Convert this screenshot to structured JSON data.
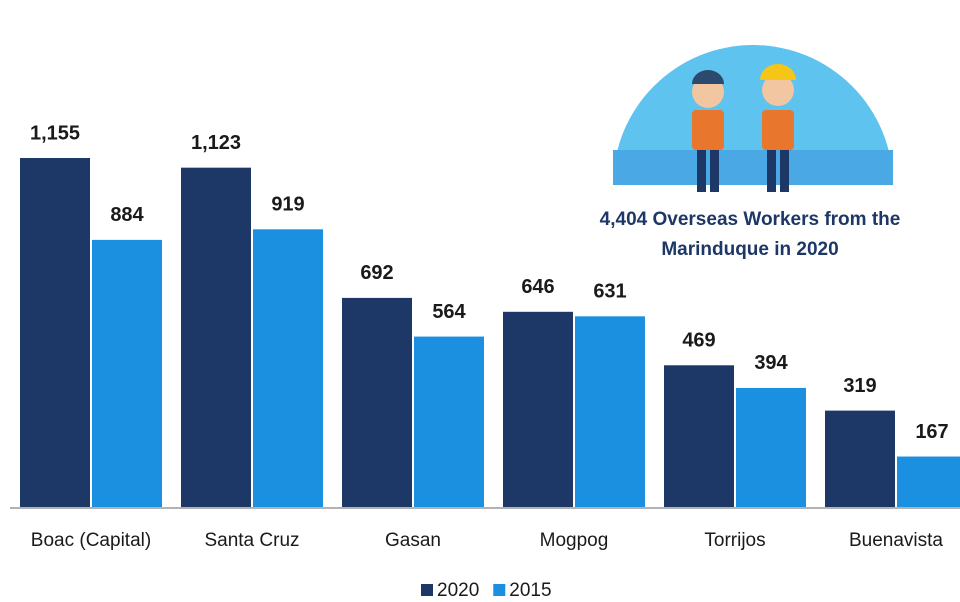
{
  "chart_data": {
    "type": "bar",
    "annotation": "4,404 Overseas Workers from the Marinduque in 2020",
    "categories": [
      "Boac (Capital)",
      "Santa Cruz",
      "Gasan",
      "Mogpog",
      "Torrijos",
      "Buenavista"
    ],
    "series": [
      {
        "name": "2020",
        "color": "#1d3766",
        "values": [
          1155,
          1123,
          692,
          646,
          469,
          319
        ],
        "value_labels": [
          "1,155",
          "1,123",
          "692",
          "646",
          "469",
          "319"
        ]
      },
      {
        "name": "2015",
        "color": "#1b8fe0",
        "values": [
          884,
          919,
          564,
          631,
          394,
          167
        ],
        "value_labels": [
          "884",
          "919",
          "564",
          "631",
          "394",
          "167"
        ]
      }
    ],
    "legend": "bottom"
  }
}
